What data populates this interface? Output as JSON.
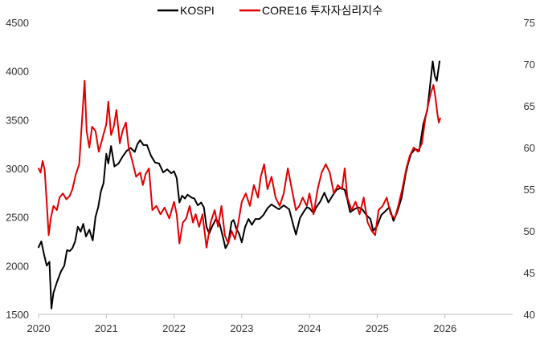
{
  "chart_data": {
    "type": "line",
    "title": "",
    "x_ticks": [
      "2020",
      "2021",
      "2022",
      "2023",
      "2024",
      "2025",
      "2026"
    ],
    "xlim": [
      2020,
      2027
    ],
    "left_axis": {
      "ticks": [
        "1500",
        "2000",
        "2500",
        "3000",
        "3500",
        "4000",
        "4500"
      ],
      "ylim": [
        1500,
        4500
      ]
    },
    "right_axis": {
      "ticks": [
        "40",
        "45",
        "50",
        "55",
        "60",
        "65",
        "70",
        "75"
      ],
      "ylim": [
        40,
        75
      ]
    },
    "legend": {
      "position": "top-center"
    },
    "series": [
      {
        "name": "KOSPI",
        "axis": "left",
        "color": "#000000",
        "points": [
          [
            2020.0,
            2190
          ],
          [
            2020.04,
            2250
          ],
          [
            2020.08,
            2120
          ],
          [
            2020.12,
            2000
          ],
          [
            2020.16,
            2040
          ],
          [
            2020.19,
            1560
          ],
          [
            2020.22,
            1720
          ],
          [
            2020.27,
            1830
          ],
          [
            2020.33,
            1940
          ],
          [
            2020.38,
            2000
          ],
          [
            2020.42,
            2160
          ],
          [
            2020.46,
            2150
          ],
          [
            2020.5,
            2180
          ],
          [
            2020.54,
            2250
          ],
          [
            2020.58,
            2400
          ],
          [
            2020.62,
            2350
          ],
          [
            2020.66,
            2430
          ],
          [
            2020.7,
            2300
          ],
          [
            2020.75,
            2370
          ],
          [
            2020.8,
            2260
          ],
          [
            2020.84,
            2500
          ],
          [
            2020.88,
            2600
          ],
          [
            2020.92,
            2760
          ],
          [
            2020.96,
            2850
          ],
          [
            2021.0,
            3150
          ],
          [
            2021.03,
            3050
          ],
          [
            2021.07,
            3230
          ],
          [
            2021.12,
            3020
          ],
          [
            2021.18,
            3050
          ],
          [
            2021.24,
            3120
          ],
          [
            2021.3,
            3180
          ],
          [
            2021.36,
            3210
          ],
          [
            2021.42,
            3170
          ],
          [
            2021.46,
            3250
          ],
          [
            2021.5,
            3290
          ],
          [
            2021.55,
            3240
          ],
          [
            2021.6,
            3240
          ],
          [
            2021.66,
            3130
          ],
          [
            2021.72,
            3060
          ],
          [
            2021.78,
            3050
          ],
          [
            2021.84,
            2960
          ],
          [
            2021.9,
            2990
          ],
          [
            2021.96,
            2950
          ],
          [
            2022.0,
            2970
          ],
          [
            2022.04,
            2900
          ],
          [
            2022.08,
            2650
          ],
          [
            2022.12,
            2720
          ],
          [
            2022.16,
            2690
          ],
          [
            2022.2,
            2730
          ],
          [
            2022.26,
            2700
          ],
          [
            2022.3,
            2690
          ],
          [
            2022.35,
            2620
          ],
          [
            2022.4,
            2650
          ],
          [
            2022.44,
            2600
          ],
          [
            2022.48,
            2400
          ],
          [
            2022.52,
            2330
          ],
          [
            2022.56,
            2400
          ],
          [
            2022.62,
            2480
          ],
          [
            2022.67,
            2440
          ],
          [
            2022.72,
            2300
          ],
          [
            2022.76,
            2180
          ],
          [
            2022.8,
            2230
          ],
          [
            2022.85,
            2450
          ],
          [
            2022.88,
            2470
          ],
          [
            2022.92,
            2380
          ],
          [
            2022.96,
            2330
          ],
          [
            2023.0,
            2240
          ],
          [
            2023.05,
            2400
          ],
          [
            2023.1,
            2480
          ],
          [
            2023.15,
            2420
          ],
          [
            2023.2,
            2480
          ],
          [
            2023.26,
            2480
          ],
          [
            2023.32,
            2520
          ],
          [
            2023.38,
            2590
          ],
          [
            2023.44,
            2630
          ],
          [
            2023.48,
            2610
          ],
          [
            2023.55,
            2580
          ],
          [
            2023.62,
            2620
          ],
          [
            2023.7,
            2580
          ],
          [
            2023.76,
            2420
          ],
          [
            2023.8,
            2320
          ],
          [
            2023.86,
            2490
          ],
          [
            2023.92,
            2560
          ],
          [
            2023.96,
            2600
          ],
          [
            2024.0,
            2590
          ],
          [
            2024.06,
            2540
          ],
          [
            2024.1,
            2600
          ],
          [
            2024.16,
            2660
          ],
          [
            2024.22,
            2750
          ],
          [
            2024.28,
            2650
          ],
          [
            2024.34,
            2720
          ],
          [
            2024.4,
            2780
          ],
          [
            2024.46,
            2800
          ],
          [
            2024.52,
            2780
          ],
          [
            2024.56,
            2680
          ],
          [
            2024.6,
            2550
          ],
          [
            2024.66,
            2580
          ],
          [
            2024.72,
            2600
          ],
          [
            2024.78,
            2580
          ],
          [
            2024.84,
            2520
          ],
          [
            2024.9,
            2480
          ],
          [
            2024.94,
            2360
          ],
          [
            2025.0,
            2410
          ],
          [
            2025.06,
            2520
          ],
          [
            2025.12,
            2560
          ],
          [
            2025.18,
            2600
          ],
          [
            2025.24,
            2460
          ],
          [
            2025.3,
            2560
          ],
          [
            2025.36,
            2700
          ],
          [
            2025.42,
            2940
          ],
          [
            2025.46,
            3060
          ],
          [
            2025.5,
            3150
          ],
          [
            2025.56,
            3200
          ],
          [
            2025.62,
            3180
          ],
          [
            2025.68,
            3450
          ],
          [
            2025.74,
            3600
          ],
          [
            2025.78,
            3850
          ],
          [
            2025.82,
            4100
          ],
          [
            2025.85,
            3950
          ],
          [
            2025.88,
            3900
          ],
          [
            2025.92,
            4100
          ]
        ]
      },
      {
        "name": "CORE16 투자자심리지수",
        "axis": "right",
        "color": "#e00000",
        "points": [
          [
            2020.0,
            57.5
          ],
          [
            2020.03,
            57.0
          ],
          [
            2020.06,
            58.4
          ],
          [
            2020.09,
            57.3
          ],
          [
            2020.12,
            53.5
          ],
          [
            2020.15,
            49.5
          ],
          [
            2020.18,
            51.5
          ],
          [
            2020.22,
            53.0
          ],
          [
            2020.27,
            52.5
          ],
          [
            2020.31,
            54.0
          ],
          [
            2020.36,
            54.5
          ],
          [
            2020.41,
            53.8
          ],
          [
            2020.46,
            54.2
          ],
          [
            2020.5,
            55.0
          ],
          [
            2020.55,
            56.8
          ],
          [
            2020.6,
            58.0
          ],
          [
            2020.64,
            63.0
          ],
          [
            2020.68,
            68.0
          ],
          [
            2020.71,
            62.0
          ],
          [
            2020.75,
            60.0
          ],
          [
            2020.79,
            62.5
          ],
          [
            2020.84,
            62.0
          ],
          [
            2020.89,
            59.5
          ],
          [
            2020.94,
            61.0
          ],
          [
            2021.0,
            62.8
          ],
          [
            2021.03,
            65.5
          ],
          [
            2021.07,
            61.5
          ],
          [
            2021.11,
            62.5
          ],
          [
            2021.15,
            64.5
          ],
          [
            2021.2,
            60.5
          ],
          [
            2021.24,
            62.0
          ],
          [
            2021.29,
            63.0
          ],
          [
            2021.33,
            60.0
          ],
          [
            2021.38,
            58.5
          ],
          [
            2021.44,
            56.5
          ],
          [
            2021.5,
            57.0
          ],
          [
            2021.54,
            55.5
          ],
          [
            2021.58,
            56.8
          ],
          [
            2021.63,
            57.5
          ],
          [
            2021.68,
            52.5
          ],
          [
            2021.74,
            53.0
          ],
          [
            2021.8,
            52.0
          ],
          [
            2021.86,
            52.8
          ],
          [
            2021.93,
            51.5
          ],
          [
            2022.0,
            53.5
          ],
          [
            2022.04,
            52.0
          ],
          [
            2022.08,
            48.5
          ],
          [
            2022.13,
            51.0
          ],
          [
            2022.18,
            51.5
          ],
          [
            2022.23,
            53.0
          ],
          [
            2022.28,
            51.0
          ],
          [
            2022.32,
            52.0
          ],
          [
            2022.37,
            50.5
          ],
          [
            2022.42,
            52.0
          ],
          [
            2022.48,
            48.0
          ],
          [
            2022.54,
            51.0
          ],
          [
            2022.6,
            52.5
          ],
          [
            2022.65,
            50.5
          ],
          [
            2022.7,
            53.0
          ],
          [
            2022.75,
            49.5
          ],
          [
            2022.8,
            48.5
          ],
          [
            2022.85,
            50.0
          ],
          [
            2022.9,
            49.0
          ],
          [
            2022.95,
            51.0
          ],
          [
            2023.0,
            53.5
          ],
          [
            2023.06,
            54.5
          ],
          [
            2023.12,
            53.0
          ],
          [
            2023.18,
            55.5
          ],
          [
            2023.24,
            54.0
          ],
          [
            2023.28,
            56.5
          ],
          [
            2023.33,
            58.0
          ],
          [
            2023.38,
            55.0
          ],
          [
            2023.44,
            56.5
          ],
          [
            2023.5,
            54.0
          ],
          [
            2023.56,
            53.0
          ],
          [
            2023.62,
            54.5
          ],
          [
            2023.68,
            57.5
          ],
          [
            2023.74,
            55.0
          ],
          [
            2023.8,
            52.5
          ],
          [
            2023.85,
            53.0
          ],
          [
            2023.9,
            54.0
          ],
          [
            2023.96,
            53.0
          ],
          [
            2024.0,
            54.5
          ],
          [
            2024.06,
            52.0
          ],
          [
            2024.12,
            55.0
          ],
          [
            2024.18,
            57.0
          ],
          [
            2024.24,
            58.0
          ],
          [
            2024.3,
            57.0
          ],
          [
            2024.36,
            54.5
          ],
          [
            2024.42,
            55.5
          ],
          [
            2024.48,
            55.0
          ],
          [
            2024.52,
            57.5
          ],
          [
            2024.56,
            54.0
          ],
          [
            2024.62,
            52.5
          ],
          [
            2024.68,
            53.5
          ],
          [
            2024.74,
            52.0
          ],
          [
            2024.8,
            54.0
          ],
          [
            2024.86,
            51.0
          ],
          [
            2024.92,
            50.0
          ],
          [
            2024.97,
            49.5
          ],
          [
            2025.02,
            52.5
          ],
          [
            2025.08,
            53.0
          ],
          [
            2025.14,
            54.0
          ],
          [
            2025.2,
            52.0
          ],
          [
            2025.26,
            51.5
          ],
          [
            2025.31,
            53.0
          ],
          [
            2025.37,
            55.0
          ],
          [
            2025.43,
            57.5
          ],
          [
            2025.48,
            59.0
          ],
          [
            2025.54,
            60.0
          ],
          [
            2025.6,
            59.5
          ],
          [
            2025.66,
            60.5
          ],
          [
            2025.71,
            63.5
          ],
          [
            2025.75,
            65.0
          ],
          [
            2025.79,
            66.5
          ],
          [
            2025.83,
            67.5
          ],
          [
            2025.86,
            66.0
          ],
          [
            2025.89,
            64.0
          ],
          [
            2025.91,
            63.0
          ],
          [
            2025.93,
            63.5
          ]
        ]
      }
    ]
  }
}
